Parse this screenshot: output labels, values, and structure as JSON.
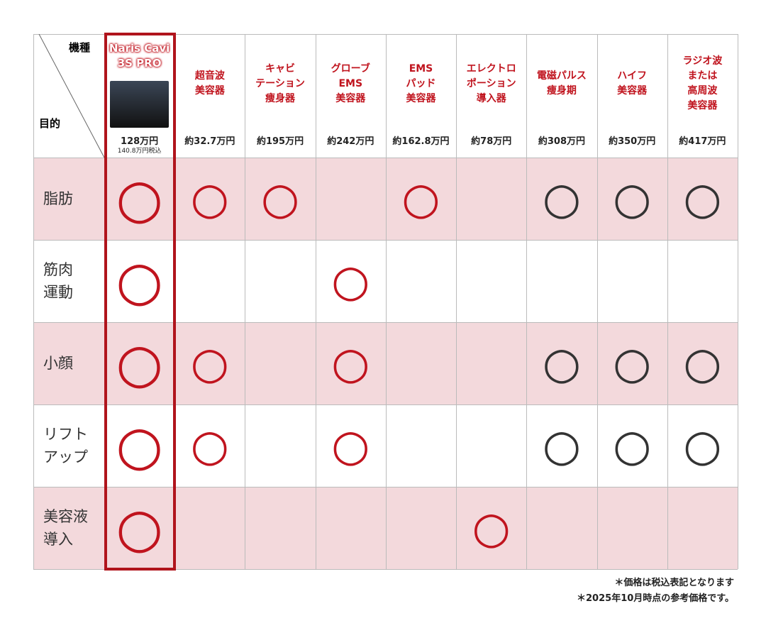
{
  "corner": {
    "top": "機種",
    "bottom": "目的"
  },
  "columns": [
    {
      "name": [
        "Naris Cavi",
        "3S PRO"
      ],
      "price": "128万円",
      "price_note": "140.8万円税込",
      "color": "#c0141e"
    },
    {
      "name": [
        "超音波",
        "美容器"
      ],
      "price": "約32.7万円",
      "color": "#c0141e"
    },
    {
      "name": [
        "キャビ",
        "テーション",
        "痩身器"
      ],
      "price": "約195万円",
      "color": "#c0141e"
    },
    {
      "name": [
        "グローブ",
        "EMS",
        "美容器"
      ],
      "price": "約242万円",
      "color": "#c0141e"
    },
    {
      "name": [
        "EMS",
        "パッド",
        "美容器"
      ],
      "price": "約162.8万円",
      "color": "#c0141e"
    },
    {
      "name": [
        "エレクトロ",
        "ポーション",
        "導入器"
      ],
      "price": "約78万円",
      "color": "#c0141e"
    },
    {
      "name": [
        "電磁パルス",
        "痩身期"
      ],
      "price": "約308万円",
      "color": "#333333"
    },
    {
      "name": [
        "ハイフ",
        "美容器"
      ],
      "price": "約350万円",
      "color": "#333333"
    },
    {
      "name": [
        "ラジオ波",
        "または",
        "高周波",
        "美容器"
      ],
      "price": "約417万円",
      "color": "#333333"
    }
  ],
  "rows": [
    {
      "label": [
        "脂肪"
      ],
      "cells": [
        "○",
        "○",
        "○",
        null,
        "○",
        null,
        "○",
        "○",
        "○"
      ]
    },
    {
      "label": [
        "筋肉",
        "運動"
      ],
      "cells": [
        "○",
        null,
        null,
        "○",
        null,
        null,
        null,
        null,
        null
      ]
    },
    {
      "label": [
        "小顔"
      ],
      "cells": [
        "○",
        "○",
        null,
        "○",
        null,
        null,
        "○",
        "○",
        "○"
      ]
    },
    {
      "label": [
        "リフト",
        "アップ"
      ],
      "cells": [
        "○",
        "○",
        null,
        "○",
        null,
        null,
        "○",
        "○",
        "○"
      ]
    },
    {
      "label": [
        "美容液",
        "導入"
      ],
      "cells": [
        "○",
        null,
        null,
        null,
        null,
        "○",
        null,
        null,
        null
      ]
    }
  ],
  "footnotes": [
    "＊価格は税込表記となります",
    "＊2025年10月時点の参考価格です。"
  ]
}
